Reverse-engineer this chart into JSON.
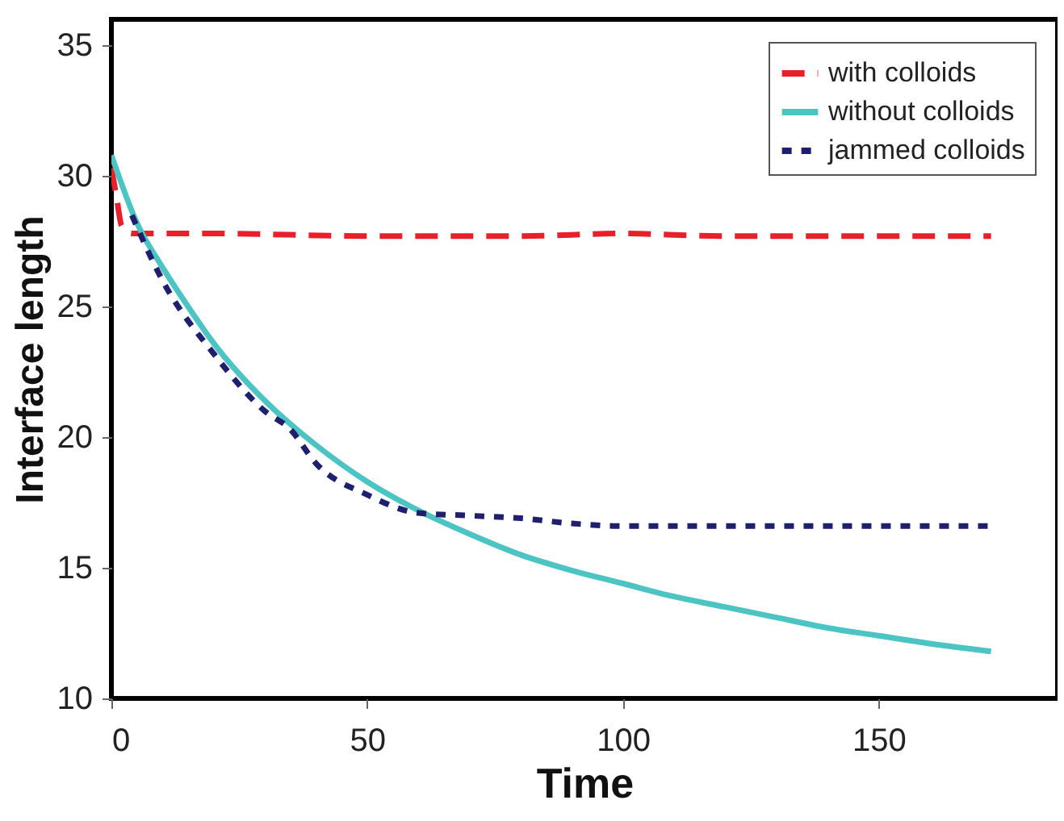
{
  "chart_data": {
    "type": "line",
    "xlabel": "Time",
    "ylabel": "Interface length",
    "xlim": [
      0,
      185
    ],
    "ylim": [
      10,
      36
    ],
    "xticks": [
      0,
      50,
      100,
      150
    ],
    "yticks": [
      10,
      15,
      20,
      25,
      30,
      35
    ],
    "legend": "top right",
    "series": [
      {
        "name": "with colloids",
        "color": "#e8202a",
        "line_style": "dashed",
        "x": [
          0,
          1,
          2,
          4,
          20,
          50,
          80,
          100,
          120,
          140,
          172
        ],
        "values": [
          30.3,
          29.2,
          28.1,
          27.8,
          27.8,
          27.7,
          27.7,
          27.8,
          27.7,
          27.7,
          27.7
        ]
      },
      {
        "name": "without colloids",
        "color": "#4cc4c4",
        "line_style": "solid",
        "x": [
          0,
          5,
          10,
          15,
          20,
          30,
          40,
          50,
          60,
          70,
          80,
          90,
          100,
          110,
          120,
          130,
          140,
          150,
          160,
          172
        ],
        "values": [
          30.8,
          28.2,
          26.5,
          25.0,
          23.6,
          21.4,
          19.7,
          18.3,
          17.2,
          16.3,
          15.5,
          14.9,
          14.4,
          13.9,
          13.5,
          13.1,
          12.7,
          12.4,
          12.1,
          11.8
        ]
      },
      {
        "name": "jammed colloids",
        "color": "#1f1f6e",
        "line_style": "dotted",
        "x": [
          4,
          10,
          20,
          30,
          35,
          40,
          50,
          60,
          70,
          80,
          90,
          100,
          130,
          172
        ],
        "values": [
          28.5,
          26.0,
          23.2,
          21.0,
          20.3,
          19.0,
          17.8,
          17.1,
          17.0,
          16.9,
          16.7,
          16.6,
          16.6,
          16.6
        ]
      }
    ]
  }
}
